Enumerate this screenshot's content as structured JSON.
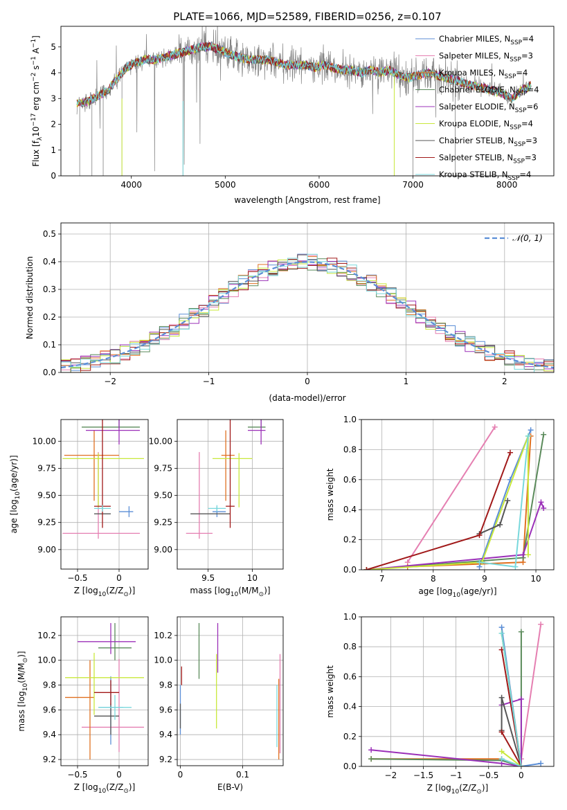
{
  "figure_title": "PLATE=1066, MJD=52589, FIBERID=0256, z=0.107",
  "models": [
    {
      "name": "Chabrier MILES, N",
      "sub": "SSP",
      "tail": "=4",
      "color": "#5b8ed6"
    },
    {
      "name": "Salpeter MILES, N",
      "sub": "SSP",
      "tail": "=3",
      "color": "#e57fb1"
    },
    {
      "name": "Kroupa MILES, N",
      "sub": "SSP",
      "tail": "=4",
      "color": "#e07020"
    },
    {
      "name": "Chabrier ELODIE, N",
      "sub": "SSP",
      "tail": "=4",
      "color": "#5a8a5a"
    },
    {
      "name": "Salpeter ELODIE, N",
      "sub": "SSP",
      "tail": "=6",
      "color": "#9b30b8"
    },
    {
      "name": "Kroupa ELODIE, N",
      "sub": "SSP",
      "tail": "=4",
      "color": "#c8e83a"
    },
    {
      "name": "Chabrier STELIB, N",
      "sub": "SSP",
      "tail": "=3",
      "color": "#555555"
    },
    {
      "name": "Salpeter STELIB, N",
      "sub": "SSP",
      "tail": "=3",
      "color": "#a01818"
    },
    {
      "name": "Kroupa STELIB, N",
      "sub": "SSP",
      "tail": "=4",
      "color": "#78d8dc"
    }
  ],
  "data_color": "#808080",
  "chart_data": [
    {
      "id": "spectrum",
      "type": "line",
      "xlabel": "wavelength [Angstrom, rest frame]",
      "ylabel_main": "Flux [f",
      "ylabel_sub": "λ",
      "ylabel_rest": "10",
      "ylabel_sup1": "−17",
      "ylabel_mid": " erg cm",
      "ylabel_sup2": "−2",
      "ylabel_mid2": " s",
      "ylabel_sup3": "−1",
      "ylabel_mid3": " A",
      "ylabel_sup4": "−1",
      "ylabel_end": "]",
      "xlim": [
        3250,
        8500
      ],
      "ylim": [
        0,
        5.8
      ],
      "xticks": [
        4000,
        5000,
        6000,
        7000,
        8000
      ],
      "yticks": [
        0,
        1,
        2,
        3,
        4,
        5
      ],
      "continuum": {
        "x": [
          3450,
          3550,
          3650,
          3750,
          3850,
          3950,
          4050,
          4150,
          4250,
          4350,
          4450,
          4550,
          4650,
          4750,
          4850,
          4950,
          5050,
          5150,
          5250,
          5350,
          5450,
          5550,
          5650,
          5750,
          5850,
          5950,
          6050,
          6150,
          6250,
          6350,
          6450,
          6550,
          6650,
          6750,
          6850,
          6950,
          7050,
          7150,
          7250,
          7350,
          7450,
          7550,
          7650,
          7750,
          7850,
          7950,
          8050,
          8150,
          8250
        ],
        "y": [
          2.8,
          2.9,
          3.1,
          3.3,
          3.8,
          4.2,
          4.4,
          4.5,
          4.5,
          4.6,
          4.7,
          4.8,
          4.9,
          5.0,
          5.0,
          4.9,
          4.7,
          4.6,
          4.5,
          4.5,
          4.5,
          4.4,
          4.3,
          4.3,
          4.3,
          4.2,
          4.3,
          4.2,
          4.1,
          4.1,
          4.0,
          4.1,
          4.0,
          4.1,
          3.9,
          3.8,
          3.9,
          4.0,
          3.9,
          3.8,
          3.7,
          3.6,
          3.5,
          3.4,
          3.3,
          3.2,
          3.0,
          3.3,
          3.5
        ]
      },
      "legend_position": "upper right"
    },
    {
      "id": "residuals",
      "type": "histogram",
      "xlabel": "(data-model)/error",
      "ylabel": "Normed distribution",
      "xlim": [
        -2.5,
        2.5
      ],
      "ylim": [
        0,
        0.54
      ],
      "xticks": [
        -2,
        -1,
        0,
        1,
        2
      ],
      "yticks": [
        0.0,
        0.1,
        0.2,
        0.3,
        0.4,
        0.5
      ],
      "bin_width": 0.1,
      "bin_start": -2.5,
      "reference": {
        "name": "𝒩(0, 1)",
        "mean": 0,
        "sigma": 1,
        "color": "#5b8ed6"
      },
      "legend_position": "upper right",
      "grid": true
    },
    {
      "id": "age_vs_Z",
      "type": "errorbar",
      "xlabel": "Z [log",
      "xlabel_sub": "10",
      "xlabel_rest": "(Z/Z",
      "xlabel_sub2": "⊙",
      "xlabel_end": ")]",
      "ylabel": "age  [log",
      "ylabel_sub": "10",
      "ylabel_rest": "(age/yr)]",
      "xlim": [
        -0.7,
        0.35
      ],
      "ylim": [
        8.82,
        10.2
      ],
      "xticks": [
        -0.5,
        0.0
      ],
      "yticks": [
        9.0,
        9.25,
        9.5,
        9.75,
        10.0
      ],
      "points": [
        {
          "model": 0,
          "x": 0.12,
          "xerr": [
            0.12,
            0.05
          ],
          "y": 9.35,
          "yerr": [
            0.05,
            0.05
          ]
        },
        {
          "model": 1,
          "x": -0.25,
          "xerr": [
            0.43,
            0.5
          ],
          "y": 9.15,
          "yerr": [
            0.05,
            0.75
          ]
        },
        {
          "model": 2,
          "x": -0.3,
          "xerr": [
            0.36,
            0.3
          ],
          "y": 9.87,
          "yerr": [
            0.42,
            0.23
          ]
        },
        {
          "model": 3,
          "x": 0.0,
          "xerr": [
            0.45,
            0.25
          ],
          "y": 10.13,
          "yerr": [
            0.01,
            0.1
          ]
        },
        {
          "model": 4,
          "x": 0.0,
          "xerr": [
            0.4,
            0.25
          ],
          "y": 10.1,
          "yerr": [
            0.13,
            0.1
          ]
        },
        {
          "model": 5,
          "x": -0.25,
          "xerr": [
            0.43,
            0.55
          ],
          "y": 9.84,
          "yerr": [
            0.45,
            0.05
          ]
        },
        {
          "model": 6,
          "x": -0.2,
          "xerr": [
            0.1,
            0.1
          ],
          "y": 9.33,
          "yerr": [
            0.0,
            0.0
          ]
        },
        {
          "model": 7,
          "x": -0.2,
          "xerr": [
            0.1,
            0.1
          ],
          "y": 9.4,
          "yerr": [
            0.2,
            0.8
          ]
        },
        {
          "model": 8,
          "x": -0.2,
          "xerr": [
            0.1,
            0.1
          ],
          "y": 9.38,
          "yerr": [
            0.03,
            0.03
          ]
        }
      ],
      "grid": true
    },
    {
      "id": "age_vs_mass",
      "type": "errorbar",
      "xlabel": "mass [log",
      "xlabel_sub": "10",
      "xlabel_rest": "(M/M",
      "xlabel_sub2": "⊙",
      "xlabel_end": ")]",
      "xlim": [
        9.15,
        10.35
      ],
      "ylim": [
        8.82,
        10.2
      ],
      "xticks": [
        9.5,
        10.0
      ],
      "yticks": [
        9.0,
        9.25,
        9.5,
        9.75,
        10.0
      ],
      "points": [
        {
          "model": 0,
          "x": 9.6,
          "xerr": [
            0.05,
            0.1
          ],
          "y": 9.35,
          "yerr": [
            0.05,
            0.05
          ]
        },
        {
          "model": 1,
          "x": 9.4,
          "xerr": [
            0.15,
            0.15
          ],
          "y": 9.15,
          "yerr": [
            0.05,
            0.75
          ]
        },
        {
          "model": 2,
          "x": 9.7,
          "xerr": [
            0.05,
            0.1
          ],
          "y": 9.87,
          "yerr": [
            0.42,
            0.23
          ]
        },
        {
          "model": 3,
          "x": 10.1,
          "xerr": [
            0.15,
            0.05
          ],
          "y": 10.13,
          "yerr": [
            0.01,
            0.1
          ]
        },
        {
          "model": 4,
          "x": 10.1,
          "xerr": [
            0.15,
            0.05
          ],
          "y": 10.1,
          "yerr": [
            0.13,
            0.1
          ]
        },
        {
          "model": 5,
          "x": 9.85,
          "xerr": [
            0.3,
            0.15
          ],
          "y": 9.84,
          "yerr": [
            0.45,
            0.05
          ]
        },
        {
          "model": 6,
          "x": 9.55,
          "xerr": [
            0.25,
            0.2
          ],
          "y": 9.33,
          "yerr": [
            0.0,
            0.0
          ]
        },
        {
          "model": 7,
          "x": 9.75,
          "xerr": [
            0.05,
            0.05
          ],
          "y": 9.4,
          "yerr": [
            0.2,
            0.8
          ]
        },
        {
          "model": 8,
          "x": 9.6,
          "xerr": [
            0.1,
            0.1
          ],
          "y": 9.38,
          "yerr": [
            0.03,
            0.03
          ]
        }
      ],
      "grid": true
    },
    {
      "id": "mass_weight_vs_age",
      "type": "line",
      "xlabel": "age  [log",
      "xlabel_sub": "10",
      "xlabel_rest": "(age/yr)]",
      "ylabel": "mass weight",
      "xlim": [
        6.6,
        10.35
      ],
      "ylim": [
        0,
        1.0
      ],
      "xticks": [
        7,
        8,
        9,
        10
      ],
      "yticks": [
        0.0,
        0.2,
        0.4,
        0.6,
        0.8,
        1.0
      ],
      "series": [
        {
          "model": 0,
          "x": [
            8.9,
            9.5,
            9.9
          ],
          "y": [
            0.02,
            0.6,
            0.93
          ]
        },
        {
          "model": 1,
          "x": [
            7.5,
            9.2
          ],
          "y": [
            0.05,
            0.95
          ]
        },
        {
          "model": 2,
          "x": [
            7.5,
            9.75,
            9.9
          ],
          "y": [
            0.02,
            0.05,
            0.89
          ]
        },
        {
          "model": 3,
          "x": [
            6.7,
            9.75,
            10.15
          ],
          "y": [
            0.0,
            0.08,
            0.9
          ]
        },
        {
          "model": 4,
          "x": [
            6.7,
            9.75,
            10.1,
            10.15
          ],
          "y": [
            0.0,
            0.1,
            0.45,
            0.41
          ]
        },
        {
          "model": 5,
          "x": [
            6.7,
            8.95,
            9.85,
            9.85
          ],
          "y": [
            0.0,
            0.05,
            0.89,
            0.1
          ]
        },
        {
          "model": 6,
          "x": [
            8.9,
            9.3,
            9.45
          ],
          "y": [
            0.24,
            0.3,
            0.46
          ]
        },
        {
          "model": 7,
          "x": [
            6.7,
            8.9,
            9.5
          ],
          "y": [
            0.0,
            0.23,
            0.78
          ]
        },
        {
          "model": 8,
          "x": [
            8.9,
            9.6,
            9.85
          ],
          "y": [
            0.05,
            0.02,
            0.89
          ]
        }
      ],
      "grid": true
    },
    {
      "id": "mass_vs_Z",
      "type": "errorbar",
      "xlabel": "Z [log",
      "xlabel_sub": "10",
      "xlabel_rest": "(Z/Z",
      "xlabel_sub2": "⊙",
      "xlabel_end": ")]",
      "ylabel": "mass [log",
      "ylabel_sub": "10",
      "ylabel_rest": "(M/M",
      "ylabel_sub2": "⊙",
      "ylabel_end": ")]",
      "xlim": [
        -0.7,
        0.35
      ],
      "ylim": [
        9.15,
        10.35
      ],
      "xticks": [
        -0.5,
        0.0
      ],
      "yticks": [
        9.2,
        9.4,
        9.6,
        9.8,
        10.0,
        10.2
      ],
      "points": [
        {
          "model": 0,
          "x": -0.1,
          "xerr": [
            0.15,
            0.15
          ],
          "y": 9.62,
          "yerr": [
            0.3,
            0.25
          ]
        },
        {
          "model": 1,
          "x": 0.0,
          "xerr": [
            0.45,
            0.3
          ],
          "y": 9.46,
          "yerr": [
            0.2,
            0.55
          ]
        },
        {
          "model": 2,
          "x": -0.35,
          "xerr": [
            0.3,
            0.05
          ],
          "y": 9.7,
          "yerr": [
            0.5,
            0.3
          ]
        },
        {
          "model": 3,
          "x": -0.05,
          "xerr": [
            0.2,
            0.2
          ],
          "y": 10.1,
          "yerr": [
            0.1,
            0.2
          ]
        },
        {
          "model": 4,
          "x": -0.1,
          "xerr": [
            0.4,
            0.3
          ],
          "y": 10.15,
          "yerr": [
            0.1,
            0.15
          ]
        },
        {
          "model": 5,
          "x": -0.3,
          "xerr": [
            0.35,
            0.6
          ],
          "y": 9.86,
          "yerr": [
            0.3,
            0.2
          ]
        },
        {
          "model": 6,
          "x": -0.1,
          "xerr": [
            0.2,
            0.1
          ],
          "y": 9.55,
          "yerr": [
            0.15,
            0.1
          ]
        },
        {
          "model": 7,
          "x": -0.1,
          "xerr": [
            0.2,
            0.1
          ],
          "y": 9.74,
          "yerr": [
            0.1,
            0.1
          ]
        },
        {
          "model": 8,
          "x": -0.05,
          "xerr": [
            0.2,
            0.2
          ],
          "y": 9.62,
          "yerr": [
            0.1,
            0.1
          ]
        }
      ],
      "grid": true
    },
    {
      "id": "mass_vs_EBV",
      "type": "errorbar",
      "xlabel": "E(B-V)",
      "xlim": [
        -0.005,
        0.165
      ],
      "ylim": [
        9.15,
        10.35
      ],
      "xticks": [
        0.0,
        0.1
      ],
      "yticks": [
        9.2,
        9.4,
        9.6,
        9.8,
        10.0,
        10.2
      ],
      "points": [
        {
          "model": 0,
          "x": 0.0,
          "xerr": [
            0,
            0
          ],
          "y": 9.6,
          "yerr": [
            0.2,
            0.2
          ]
        },
        {
          "model": 1,
          "x": 0.16,
          "xerr": [
            0,
            0
          ],
          "y": 9.6,
          "yerr": [
            0.35,
            0.45
          ]
        },
        {
          "model": 2,
          "x": 0.158,
          "xerr": [
            0,
            0
          ],
          "y": 9.55,
          "yerr": [
            0.35,
            0.3
          ]
        },
        {
          "model": 3,
          "x": 0.03,
          "xerr": [
            0,
            0
          ],
          "y": 10.05,
          "yerr": [
            0.2,
            0.25
          ]
        },
        {
          "model": 4,
          "x": 0.06,
          "xerr": [
            0,
            0
          ],
          "y": 10.1,
          "yerr": [
            0.2,
            0.2
          ]
        },
        {
          "model": 5,
          "x": 0.058,
          "xerr": [
            0,
            0
          ],
          "y": 9.75,
          "yerr": [
            0.3,
            0.3
          ]
        },
        {
          "model": 6,
          "x": 0.0,
          "xerr": [
            0,
            0
          ],
          "y": 9.55,
          "yerr": [
            0.1,
            0.1
          ]
        },
        {
          "model": 7,
          "x": 0.002,
          "xerr": [
            0,
            0
          ],
          "y": 9.9,
          "yerr": [
            0.1,
            0.05
          ]
        },
        {
          "model": 8,
          "x": 0.155,
          "xerr": [
            0,
            0
          ],
          "y": 9.5,
          "yerr": [
            0.2,
            0.3
          ]
        }
      ],
      "grid": true
    },
    {
      "id": "mass_weight_vs_Z",
      "type": "line",
      "xlabel": "Z [log",
      "xlabel_sub": "10",
      "xlabel_rest": "(Z/Z",
      "xlabel_sub2": "⊙",
      "xlabel_end": ")]",
      "ylabel": "mass weight",
      "xlim": [
        -2.45,
        0.5
      ],
      "ylim": [
        0,
        1.0
      ],
      "xticks": [
        -2.0,
        -1.5,
        -1.0,
        -0.5,
        0.0
      ],
      "yticks": [
        0.0,
        0.2,
        0.4,
        0.6,
        0.8,
        1.0
      ],
      "series": [
        {
          "model": 0,
          "x": [
            -0.3,
            0.0,
            0.3
          ],
          "y": [
            0.93,
            0.0,
            0.02
          ]
        },
        {
          "model": 1,
          "x": [
            0.0,
            0.3
          ],
          "y": [
            0.05,
            0.95
          ]
        },
        {
          "model": 2,
          "x": [
            -2.3,
            -0.3,
            0.0,
            -0.3
          ],
          "y": [
            0.05,
            0.05,
            0.0,
            0.89
          ]
        },
        {
          "model": 3,
          "x": [
            -2.3,
            -0.3,
            0.0,
            0.0
          ],
          "y": [
            0.05,
            0.04,
            0.0,
            0.9
          ]
        },
        {
          "model": 4,
          "x": [
            -2.3,
            -0.3,
            0.0,
            0.0,
            -0.3
          ],
          "y": [
            0.11,
            0.02,
            0.0,
            0.45,
            0.41
          ]
        },
        {
          "model": 5,
          "x": [
            -0.3,
            0.0,
            -0.3
          ],
          "y": [
            0.1,
            0.0,
            0.89
          ]
        },
        {
          "model": 6,
          "x": [
            -0.3,
            -0.3,
            0.0
          ],
          "y": [
            0.24,
            0.46,
            0.0
          ]
        },
        {
          "model": 7,
          "x": [
            -0.3,
            0.0,
            -0.3
          ],
          "y": [
            0.78,
            0.0,
            0.23
          ]
        },
        {
          "model": 8,
          "x": [
            -0.3,
            0.0,
            -0.3
          ],
          "y": [
            0.89,
            0.0,
            0.05
          ]
        }
      ],
      "grid": true
    }
  ]
}
